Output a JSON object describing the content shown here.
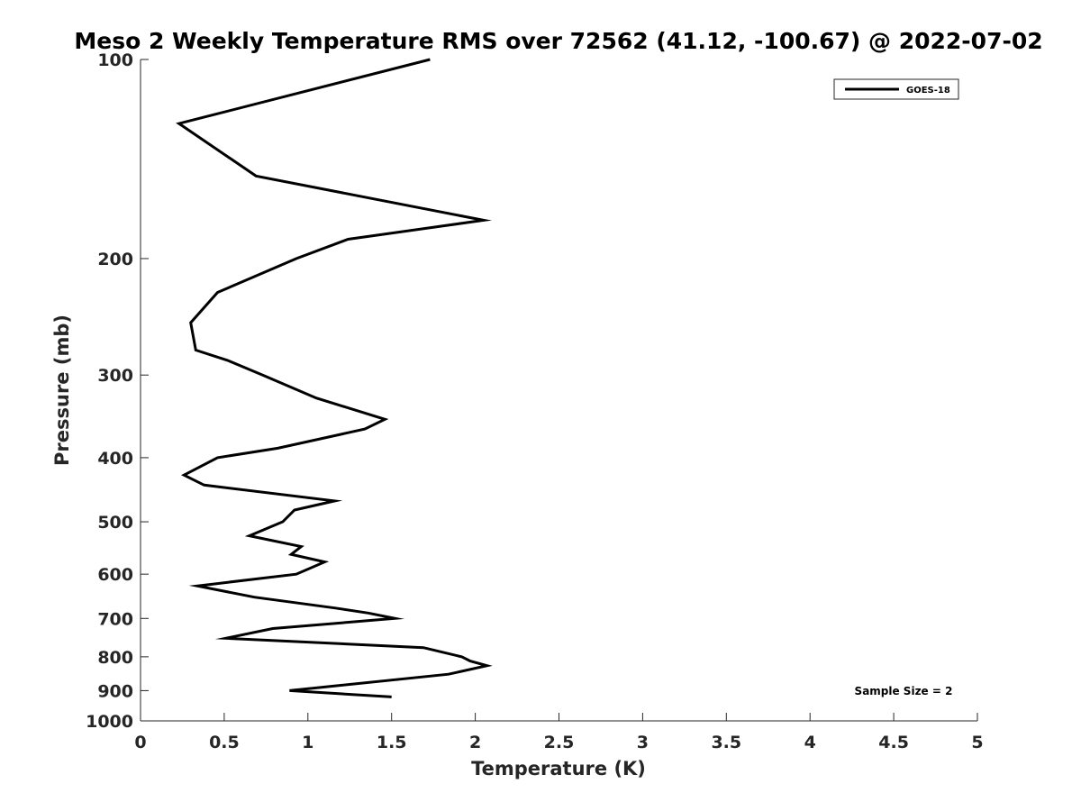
{
  "chart_data": {
    "type": "line",
    "title": "Meso 2 Weekly Temperature RMS over 72562 (41.12, -100.67) @ 2022-07-02",
    "xlabel": "Temperature (K)",
    "ylabel": "Pressure (mb)",
    "xlim": [
      0,
      5
    ],
    "ylim": [
      100,
      1000
    ],
    "y_scale": "log",
    "y_reversed": true,
    "x_ticks": [
      "0",
      "0.5",
      "1",
      "1.5",
      "2",
      "2.5",
      "3",
      "3.5",
      "4",
      "4.5",
      "5"
    ],
    "y_ticks": [
      "100",
      "200",
      "300",
      "400",
      "500",
      "600",
      "700",
      "800",
      "900",
      "1000"
    ],
    "grid": false,
    "legend_position": "top-right",
    "annotation": "Sample Size = 2",
    "series": [
      {
        "name": "GOES-18",
        "color": "#000000",
        "x": [
          1.73,
          0.23,
          0.69,
          2.05,
          1.24,
          0.93,
          0.46,
          0.3,
          0.33,
          0.52,
          0.73,
          1.05,
          1.46,
          1.34,
          0.82,
          0.46,
          0.26,
          0.38,
          1.16,
          0.92,
          0.85,
          0.65,
          0.96,
          0.9,
          1.1,
          0.93,
          0.34,
          0.68,
          1.16,
          1.36,
          1.52,
          0.79,
          0.51,
          1.69,
          1.92,
          1.97,
          2.07,
          1.84,
          0.89,
          1.5
        ],
        "y": [
          100,
          125,
          150,
          175,
          187,
          200,
          225,
          250,
          275,
          285,
          300,
          325,
          350,
          362,
          387,
          400,
          425,
          440,
          465,
          480,
          500,
          525,
          545,
          560,
          575,
          600,
          625,
          650,
          675,
          687,
          700,
          725,
          750,
          775,
          800,
          812,
          825,
          850,
          900,
          920
        ]
      }
    ]
  }
}
